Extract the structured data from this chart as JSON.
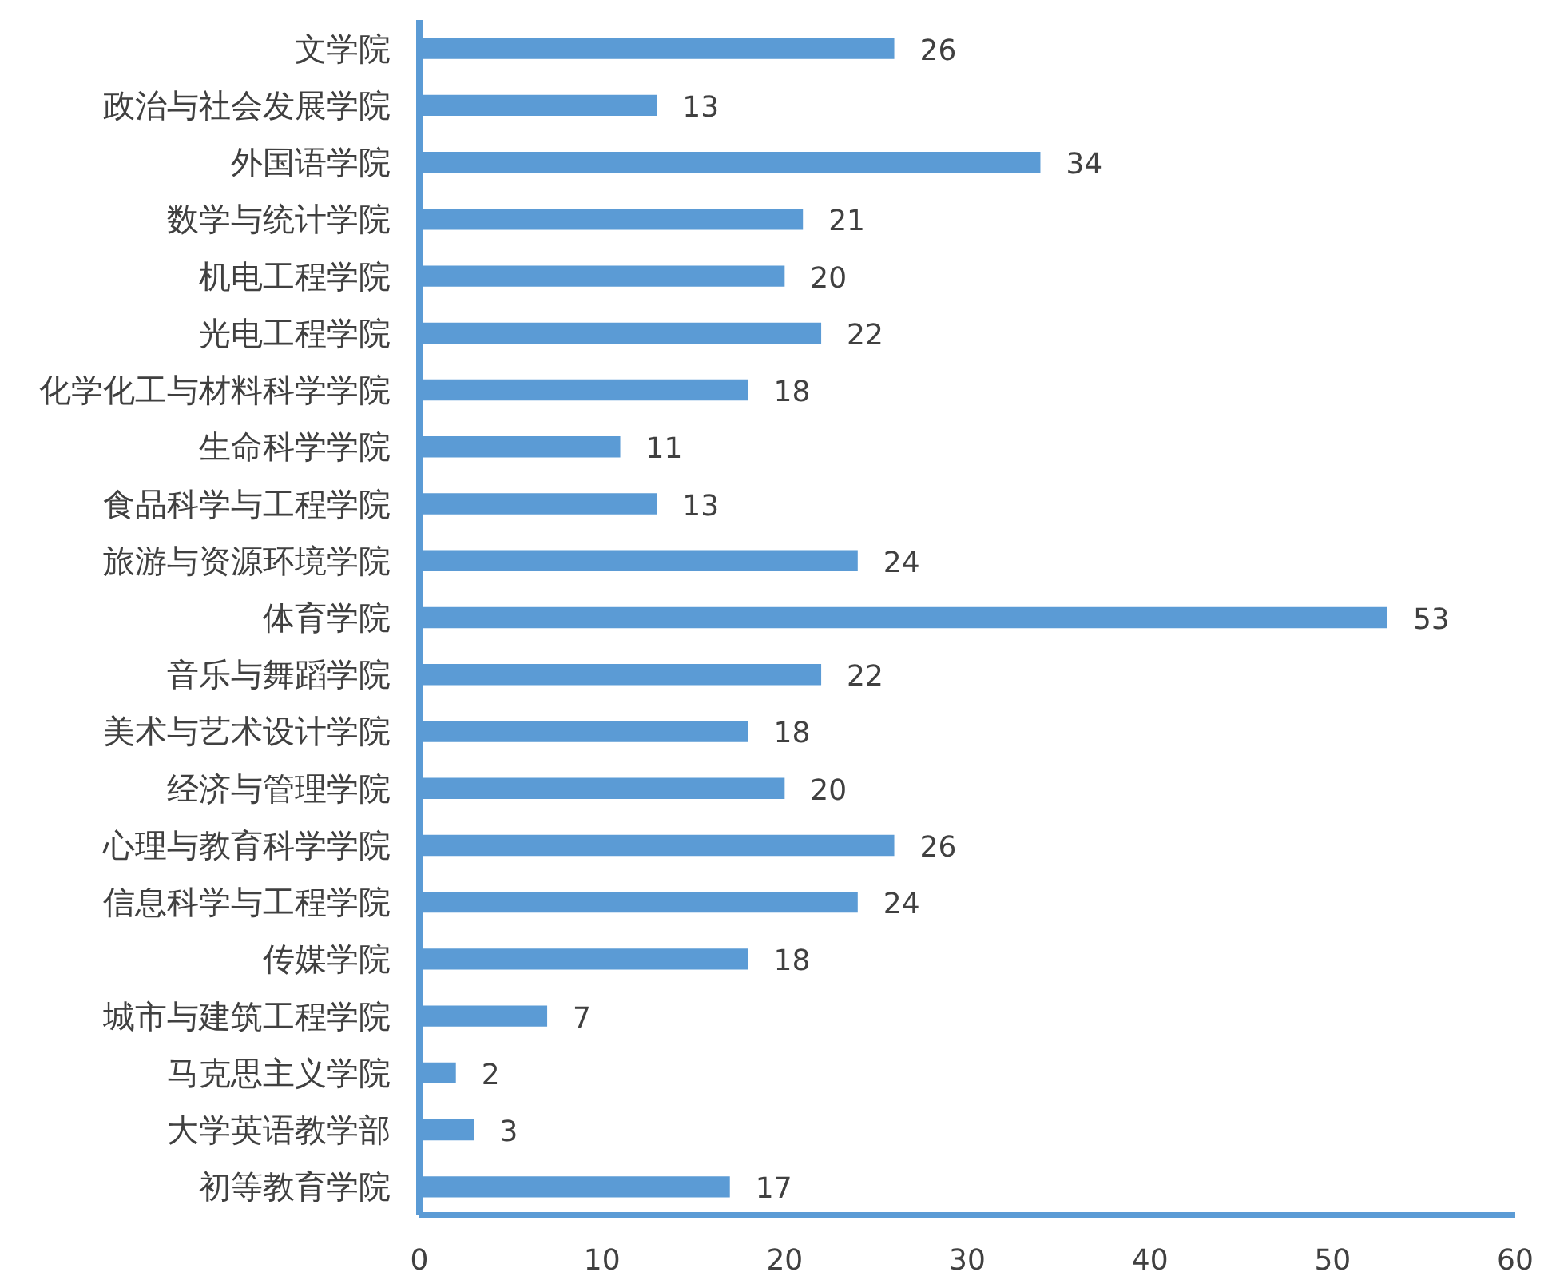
{
  "chart_data": {
    "type": "bar",
    "orientation": "horizontal",
    "categories": [
      "文学院",
      "政治与社会发展学院",
      "外国语学院",
      "数学与统计学院",
      "机电工程学院",
      "光电工程学院",
      "化学化工与材料科学学院",
      "生命科学学院",
      "食品科学与工程学院",
      "旅游与资源环境学院",
      "体育学院",
      "音乐与舞蹈学院",
      "美术与艺术设计学院",
      "经济与管理学院",
      "心理与教育科学学院",
      "信息科学与工程学院",
      "传媒学院",
      "城市与建筑工程学院",
      "马克思主义学院",
      "大学英语教学部",
      "初等教育学院"
    ],
    "values": [
      26,
      13,
      34,
      21,
      20,
      22,
      18,
      11,
      13,
      24,
      53,
      22,
      18,
      20,
      26,
      24,
      18,
      7,
      2,
      3,
      17
    ],
    "color": "#5b9bd5",
    "xlim": [
      0,
      60
    ],
    "xticks": [
      0,
      10,
      20,
      30,
      40,
      50,
      60
    ],
    "data_labels": true,
    "grid": false
  }
}
